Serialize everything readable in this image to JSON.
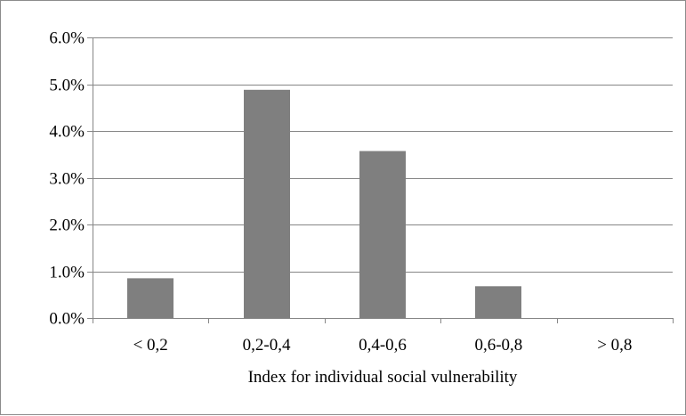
{
  "chart_data": {
    "type": "bar",
    "title": "",
    "xlabel": "Index for individual social vulnerability",
    "ylabel": "",
    "categories": [
      "< 0,2",
      "0,2-0,4",
      "0,4-0,6",
      "0,6-0,8",
      "> 0,8"
    ],
    "values": [
      0.0085,
      0.0488,
      0.0357,
      0.0068,
      0.0
    ],
    "ylim": [
      0,
      0.06
    ],
    "yticks": [
      0,
      0.01,
      0.02,
      0.03,
      0.04,
      0.05,
      0.06
    ],
    "ytick_labels": [
      "0.0%",
      "1.0%",
      "2.0%",
      "3.0%",
      "4.0%",
      "5.0%",
      "6.0%"
    ],
    "grid": true,
    "legend": "none",
    "colors": {
      "bar": "#7f7f7f",
      "grid": "#868686",
      "axis": "#868686",
      "text": "#000000",
      "frame": "#8c8c8c"
    }
  }
}
